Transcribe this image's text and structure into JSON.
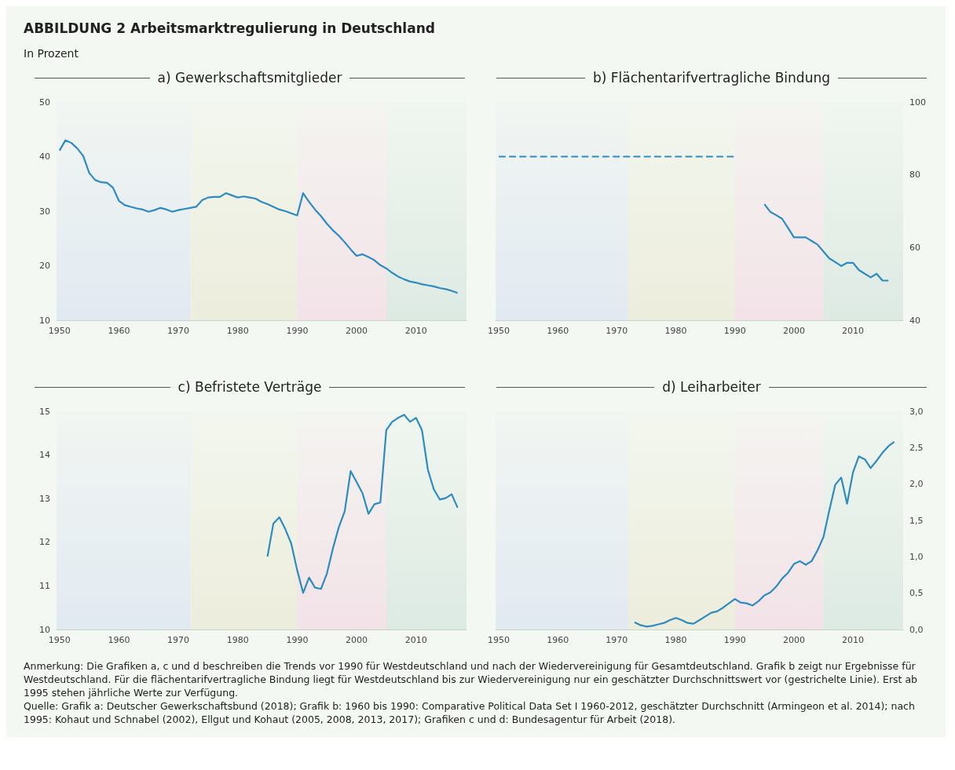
{
  "chart_data": [
    {
      "type": "other",
      "title": "ABBILDUNG 2 Arbeitsmarktregulierung in Deutschland",
      "subtitle": "In Prozent"
    },
    {
      "type": "line",
      "title": "a) Gewerkschaftsmitglieder",
      "xlim": [
        1949.5,
        2018.5
      ],
      "xticks": [
        1950,
        1960,
        1970,
        1980,
        1990,
        2000,
        2010
      ],
      "ylim": [
        10,
        50
      ],
      "yticks": [
        10,
        20,
        30,
        40,
        50
      ],
      "bands": [
        {
          "axis": "x",
          "from": 1949.5,
          "to": 1972,
          "color": "#dde6f1"
        },
        {
          "axis": "x",
          "from": 1972,
          "to": 1990,
          "color": "#eaead6"
        },
        {
          "axis": "x",
          "from": 1990,
          "to": 2005,
          "color": "#f2dde5"
        },
        {
          "axis": "x",
          "from": 2005,
          "to": 2018.5,
          "color": "#d7e7df"
        }
      ],
      "series": [
        {
          "color": "#2e8bc0",
          "x": [
            1950,
            1951,
            1952,
            1953,
            1954,
            1955,
            1956,
            1957,
            1958,
            1959,
            1960,
            1961,
            1962,
            1963,
            1964,
            1965,
            1966,
            1967,
            1968,
            1969,
            1970,
            1971,
            1972,
            1973,
            1974,
            1975,
            1976,
            1977,
            1978,
            1979,
            1980,
            1981,
            1982,
            1983,
            1984,
            1985,
            1986,
            1987,
            1988,
            1989,
            1990,
            1991,
            1992,
            1993,
            1994,
            1995,
            1996,
            1997,
            1998,
            1999,
            2000,
            2001,
            2002,
            2003,
            2004,
            2005,
            2006,
            2007,
            2008,
            2009,
            2010,
            2011,
            2012,
            2013,
            2014,
            2015,
            2016,
            2017
          ],
          "values": [
            41.1,
            43.0,
            42.5,
            41.5,
            40.1,
            37.0,
            35.7,
            35.3,
            35.2,
            34.3,
            31.9,
            31.1,
            30.8,
            30.5,
            30.3,
            29.9,
            30.2,
            30.6,
            30.3,
            29.9,
            30.2,
            30.4,
            30.6,
            30.8,
            32.0,
            32.5,
            32.6,
            32.6,
            33.3,
            32.9,
            32.5,
            32.7,
            32.5,
            32.3,
            31.7,
            31.3,
            30.8,
            30.3,
            30.0,
            29.6,
            29.2,
            33.3,
            31.7,
            30.3,
            29.1,
            27.7,
            26.5,
            25.5,
            24.3,
            23.0,
            21.8,
            22.1,
            21.6,
            21.0,
            20.1,
            19.5,
            18.7,
            18.0,
            17.5,
            17.1,
            16.9,
            16.6,
            16.4,
            16.2,
            15.9,
            15.7,
            15.4,
            15.0
          ]
        }
      ]
    },
    {
      "type": "line",
      "title": "b) Flächentarifvertragliche Bindung",
      "xlim": [
        1949.5,
        2018.5
      ],
      "xticks": [
        1950,
        1960,
        1970,
        1980,
        1990,
        2000,
        2010
      ],
      "y2lim": [
        40,
        100
      ],
      "y2ticks": [
        40,
        60,
        80,
        100
      ],
      "bands": [
        {
          "axis": "x",
          "from": 1949.5,
          "to": 1972,
          "color": "#dde6f1"
        },
        {
          "axis": "x",
          "from": 1972,
          "to": 1990,
          "color": "#eaead6"
        },
        {
          "axis": "x",
          "from": 1990,
          "to": 2005,
          "color": "#f2dde5"
        },
        {
          "axis": "x",
          "from": 2005,
          "to": 2018.5,
          "color": "#d7e7df"
        }
      ],
      "series": [
        {
          "color": "#2e8bc0",
          "axis": "y2",
          "line_style": "dashed",
          "x": [
            1950,
            1990
          ],
          "values": [
            85,
            85
          ]
        },
        {
          "color": "#2e8bc0",
          "axis": "y2",
          "line_style": "solid",
          "x": [
            1995,
            1996,
            1997,
            1998,
            1999,
            2000,
            2001,
            2002,
            2003,
            2004,
            2005,
            2006,
            2007,
            2008,
            2009,
            2010,
            2011,
            2012,
            2013,
            2014,
            2015,
            2016
          ],
          "values": [
            71.9,
            69.8,
            68.9,
            67.9,
            65.4,
            62.8,
            62.8,
            62.8,
            61.8,
            60.8,
            58.9,
            57.0,
            56.0,
            54.9,
            55.8,
            55.8,
            53.8,
            52.8,
            51.8,
            52.8,
            50.9,
            50.9
          ]
        }
      ]
    },
    {
      "type": "line",
      "title": "c) Befristete Verträge",
      "xlim": [
        1949.5,
        2018.5
      ],
      "xticks": [
        1950,
        1960,
        1970,
        1980,
        1990,
        2000,
        2010
      ],
      "ylim": [
        10,
        15
      ],
      "yticks": [
        10,
        11,
        12,
        13,
        14,
        15
      ],
      "bands": [
        {
          "axis": "x",
          "from": 1949.5,
          "to": 1972,
          "color": "#dde6f1"
        },
        {
          "axis": "x",
          "from": 1972,
          "to": 1990,
          "color": "#eaead6"
        },
        {
          "axis": "x",
          "from": 1990,
          "to": 2005,
          "color": "#f2dde5"
        },
        {
          "axis": "x",
          "from": 2005,
          "to": 2018.5,
          "color": "#d7e7df"
        }
      ],
      "series": [
        {
          "color": "#2e8bc0",
          "x": [
            1985,
            1986,
            1987,
            1988,
            1989,
            1990,
            1991,
            1992,
            1993,
            1994,
            1995,
            1996,
            1997,
            1998,
            1999,
            2000,
            2001,
            2002,
            2003,
            2004,
            2005,
            2006,
            2007,
            2008,
            2009,
            2010,
            2011,
            2012,
            2013,
            2014,
            2015,
            2016,
            2017
          ],
          "values": [
            11.67,
            12.43,
            12.57,
            12.3,
            11.97,
            11.36,
            10.84,
            11.19,
            10.96,
            10.93,
            11.28,
            11.85,
            12.34,
            12.71,
            13.63,
            13.38,
            13.12,
            12.65,
            12.87,
            12.91,
            14.57,
            14.76,
            14.85,
            14.92,
            14.76,
            14.85,
            14.57,
            13.66,
            13.21,
            12.98,
            13.01,
            13.1,
            12.79
          ]
        }
      ]
    },
    {
      "type": "line",
      "title": "d) Leiharbeiter",
      "xlim": [
        1949.5,
        2018.5
      ],
      "xticks": [
        1950,
        1960,
        1970,
        1980,
        1990,
        2000,
        2010
      ],
      "y2lim": [
        0,
        3
      ],
      "y2ticks": [
        {
          "value": 0,
          "label": "0,0"
        },
        {
          "value": 0.5,
          "label": "0,5"
        },
        {
          "value": 1,
          "label": "1,0"
        },
        {
          "value": 1.5,
          "label": "1,5"
        },
        {
          "value": 2,
          "label": "2,0"
        },
        {
          "value": 2.5,
          "label": "2,5"
        },
        {
          "value": 3,
          "label": "3,0"
        }
      ],
      "bands": [
        {
          "axis": "x",
          "from": 1949.5,
          "to": 1972,
          "color": "#dde6f1"
        },
        {
          "axis": "x",
          "from": 1972,
          "to": 1990,
          "color": "#eaead6"
        },
        {
          "axis": "x",
          "from": 1990,
          "to": 2005,
          "color": "#f2dde5"
        },
        {
          "axis": "x",
          "from": 2005,
          "to": 2018.5,
          "color": "#d7e7df"
        }
      ],
      "series": [
        {
          "color": "#2e8bc0",
          "axis": "y2",
          "x": [
            1973,
            1974,
            1975,
            1976,
            1977,
            1978,
            1979,
            1980,
            1981,
            1982,
            1983,
            1984,
            1985,
            1986,
            1987,
            1988,
            1989,
            1990,
            1991,
            1992,
            1993,
            1994,
            1995,
            1996,
            1997,
            1998,
            1999,
            2000,
            2001,
            2002,
            2003,
            2004,
            2005,
            2006,
            2007,
            2008,
            2009,
            2010,
            2011,
            2012,
            2013,
            2014,
            2015,
            2016,
            2017
          ],
          "values": [
            0.1,
            0.06,
            0.04,
            0.05,
            0.07,
            0.09,
            0.13,
            0.16,
            0.13,
            0.09,
            0.08,
            0.13,
            0.18,
            0.23,
            0.25,
            0.3,
            0.36,
            0.42,
            0.37,
            0.36,
            0.33,
            0.39,
            0.47,
            0.51,
            0.59,
            0.7,
            0.78,
            0.9,
            0.94,
            0.89,
            0.94,
            1.09,
            1.27,
            1.64,
            1.99,
            2.09,
            1.73,
            2.16,
            2.38,
            2.34,
            2.22,
            2.32,
            2.43,
            2.52,
            2.58
          ]
        }
      ]
    },
    {
      "type": "other",
      "annotations": [
        "Anmerkung: Die Grafiken a, c und d beschreiben die Trends vor 1990 für Westdeutschland und nach der Wiedervereinigung für Gesamtdeutschland. Grafik b zeigt nur Ergebnisse für Westdeutschland. Für die flächentarifvertragliche Bindung liegt für Westdeutschland bis zur Wiedervereinigung nur ein geschätzter Durchschnittswert vor (gestrichelte Linie). Erst ab 1995 stehen jährliche Werte zur Verfügung.",
        "Quelle: Grafik a: Deutscher Gewerkschaftsbund (2018); Grafik b: 1960 bis 1990: Comparative Political Data Set I 1960-2012, geschätzter Durchschnitt (Armingeon et al. 2014); nach 1995: Kohaut und Schnabel (2002), Ellgut und Kohaut (2005, 2008, 2013, 2017); Grafiken c und d: Bundesagentur für Arbeit (2018)."
      ]
    }
  ]
}
